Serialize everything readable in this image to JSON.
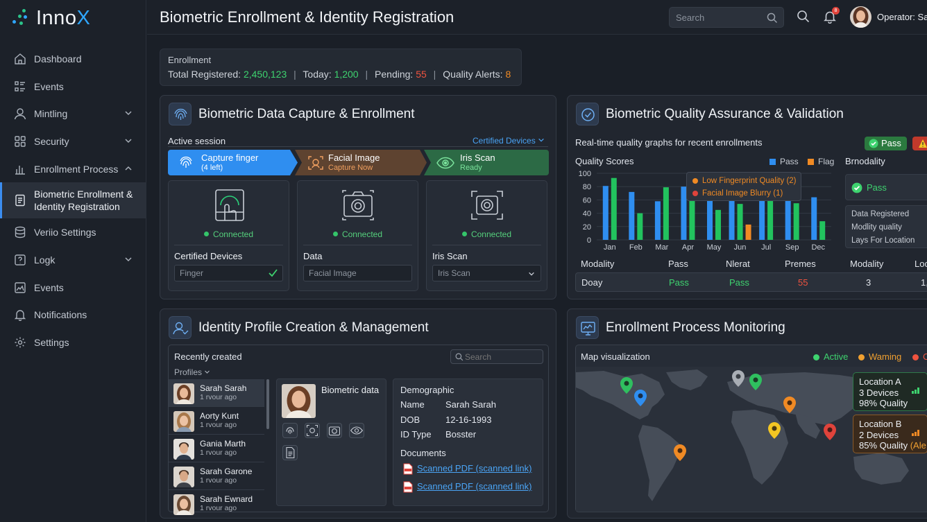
{
  "app": {
    "logo_text": "Inno",
    "logo_accent": "X",
    "title": "Biometric Enrollment & Identity Registration"
  },
  "topbar": {
    "search_placeholder": "Search",
    "notification_count": "8",
    "operator": "Operator: Sa"
  },
  "sidebar": {
    "items": [
      {
        "label": "Dashboard",
        "icon": "home-icon"
      },
      {
        "label": "Events",
        "icon": "list-icon"
      },
      {
        "label": "Mintling",
        "icon": "user-icon",
        "chevron": "down"
      },
      {
        "label": "Security",
        "icon": "grid-icon",
        "chevron": "down"
      },
      {
        "label": "Enrollment Process",
        "icon": "chart-icon",
        "chevron": "up"
      },
      {
        "label": "Biometric Enrollment & Identity Registration",
        "icon": "id-card-icon",
        "active": true
      },
      {
        "label": "Veriio Settings",
        "icon": "database-icon"
      },
      {
        "label": "Logk",
        "icon": "help-icon",
        "chevron": "down"
      },
      {
        "label": "Events",
        "icon": "image-icon"
      },
      {
        "label": "Notifications",
        "icon": "bell-icon"
      },
      {
        "label": "Settings",
        "icon": "gear-icon"
      }
    ]
  },
  "stats": {
    "label": "Enrollment",
    "total_label": "Total Registered: ",
    "total": "2,450,123",
    "today_label": "Today: ",
    "today": "1,200",
    "pending_label": "Pending: ",
    "pending": "55",
    "alerts_label": "Quality Alerts: ",
    "alerts": "8",
    "separator": "|"
  },
  "capture": {
    "title": "Biometric Data Capture & Enrollment",
    "session": "Active session",
    "certified": "Certified Devices",
    "steps": [
      {
        "title": "Capture finger",
        "sub": "(4 left)"
      },
      {
        "title": "Facial Image",
        "sub": "Capture Now"
      },
      {
        "title": "Iris Scan",
        "sub": "Ready"
      }
    ],
    "devices": [
      {
        "status": "Connected",
        "caption": "Certified Devices",
        "field": "Finger"
      },
      {
        "status": "Connected",
        "caption": "Data",
        "field": "Facial Image"
      },
      {
        "status": "Connected",
        "caption": "Iris Scan",
        "field": "Iris Scan"
      }
    ]
  },
  "quality": {
    "title": "Biometric Quality Assurance & Validation",
    "subtitle": "Real-time quality graphs for recent enrollments",
    "pass_badge": "Pass",
    "chart_title": "Quality Scores",
    "legend_pass": "Pass",
    "legend_flag": "Flag",
    "tooltip": [
      "Low Fingerprint Quality (2)",
      "Facial Image Blurry (1)"
    ],
    "side_title": "Brnodality",
    "side_pass": "Pass",
    "side_rows": [
      "Data Registered",
      "Modlity quality",
      "Lays For Location"
    ],
    "table_headers": [
      "Modality",
      "Pass",
      "Nlerat",
      "Premes",
      "Modality",
      "Loc"
    ],
    "table_row": [
      "Doay",
      "Pass",
      "Pass",
      "55",
      "3",
      "1,"
    ]
  },
  "chart_data": {
    "type": "bar",
    "title": "Quality Scores",
    "categories": [
      "Jan",
      "Feb",
      "Mar",
      "Apr",
      "May",
      "Jun",
      "Jul",
      "Sep",
      "Dec"
    ],
    "ylim": [
      0,
      100
    ],
    "yticks": [
      0,
      20,
      40,
      60,
      80,
      100
    ],
    "series": [
      {
        "name": "Pass",
        "color": "#2f8ef0",
        "values": [
          81,
          72,
          58,
          80,
          62,
          72,
          84,
          79,
          64
        ]
      },
      {
        "name": "Pass",
        "color": "#22c35e",
        "values": [
          93,
          40,
          79,
          86,
          45,
          54,
          86,
          55,
          28
        ]
      },
      {
        "name": "Flag",
        "color": "#f08a24",
        "values": [
          null,
          null,
          null,
          null,
          null,
          23,
          null,
          null,
          null
        ]
      }
    ]
  },
  "profiles": {
    "title": "Identity Profile Creation & Management",
    "recent": "Recently created",
    "search_placeholder": "Search",
    "filter": "Profiles",
    "list": [
      {
        "name": "Sarah Sarah",
        "time": "1 rvour ago"
      },
      {
        "name": "Aorty Kunt",
        "time": "1 rvour ago"
      },
      {
        "name": "Gania Marth",
        "time": "1 rvour ago"
      },
      {
        "name": "Sarah Garone",
        "time": "1 rvour ago"
      },
      {
        "name": "Sarah Ewnard",
        "time": "1 rvour ago"
      }
    ],
    "biometric_title": "Biometric data",
    "demographic": {
      "title": "Demographic",
      "name_label": "Name",
      "name": "Sarah Sarah",
      "dob_label": "DOB",
      "dob": "12-16-1993",
      "id_label": "ID Type",
      "id": "Bosster"
    },
    "documents_title": "Documents",
    "documents": [
      "Scanned PDF (scanned link)",
      "Scanned PDF (scanned link)"
    ]
  },
  "monitoring": {
    "title": "Enrollment Process Monitoring",
    "map_label": "Map visualization",
    "legend": [
      "Active",
      "Waming",
      "C"
    ],
    "location_a": {
      "name": "Location A",
      "devices": "3 Devices",
      "quality": "98% Quality"
    },
    "location_b": {
      "name": "Location B",
      "devices": "2 Devices",
      "quality": "85% Quality",
      "extra": "(Ale"
    }
  }
}
